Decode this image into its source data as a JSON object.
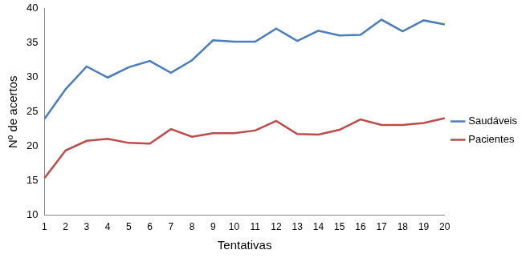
{
  "chart_data": {
    "type": "line",
    "x_label": "Tentativas",
    "y_label": "Nº de acertos",
    "categories": [
      "1",
      "2",
      "3",
      "4",
      "5",
      "6",
      "7",
      "8",
      "9",
      "10",
      "11",
      "12",
      "13",
      "14",
      "15",
      "16",
      "17",
      "18",
      "19",
      "20"
    ],
    "series": [
      {
        "name": "Saudáveis",
        "color": "#4a7ebb",
        "values": [
          24.0,
          28.3,
          31.6,
          30.0,
          31.5,
          32.4,
          30.7,
          32.5,
          35.4,
          35.2,
          35.2,
          37.1,
          35.3,
          36.8,
          36.1,
          36.2,
          38.4,
          36.7,
          38.3,
          37.7
        ]
      },
      {
        "name": "Pacientes",
        "color": "#be4b48",
        "values": [
          15.4,
          19.4,
          20.8,
          21.1,
          20.5,
          20.4,
          22.5,
          21.4,
          21.9,
          21.9,
          22.3,
          23.7,
          21.8,
          21.7,
          22.4,
          23.9,
          23.1,
          23.1,
          23.4,
          24.1
        ]
      }
    ],
    "ylim": [
      10,
      40
    ],
    "yticks": [
      10,
      15,
      20,
      25,
      30,
      35,
      40
    ],
    "grid": false,
    "legend": "right"
  }
}
